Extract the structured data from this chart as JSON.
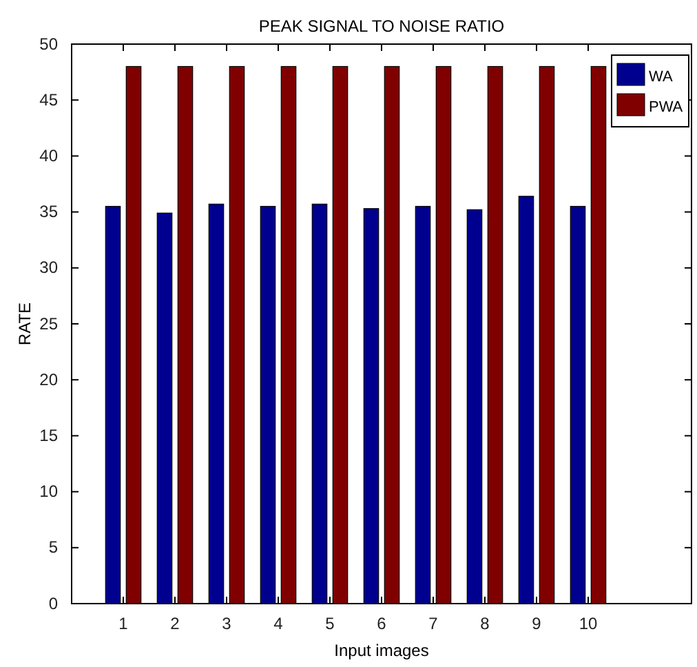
{
  "chart_data": {
    "type": "bar",
    "title": "PEAK SIGNAL TO NOISE RATIO",
    "xlabel": "Input images",
    "ylabel": "RATE",
    "x": [
      1,
      2,
      3,
      4,
      5,
      6,
      7,
      8,
      9,
      10
    ],
    "xlim": [
      0,
      12
    ],
    "xticks": [
      1,
      2,
      3,
      4,
      5,
      6,
      7,
      8,
      9,
      10
    ],
    "ylim": [
      0,
      50
    ],
    "yticks": [
      0,
      5,
      10,
      15,
      20,
      25,
      30,
      35,
      40,
      45,
      50
    ],
    "series": [
      {
        "name": "WA",
        "color": "#00008f",
        "values": [
          35.5,
          34.9,
          35.7,
          35.5,
          35.7,
          35.3,
          35.5,
          35.2,
          36.4,
          35.5
        ]
      },
      {
        "name": "PWA",
        "color": "#800000",
        "values": [
          48,
          48,
          48,
          48,
          48,
          48,
          48,
          48,
          48,
          48
        ]
      }
    ],
    "legend": "top right",
    "grid": false
  }
}
